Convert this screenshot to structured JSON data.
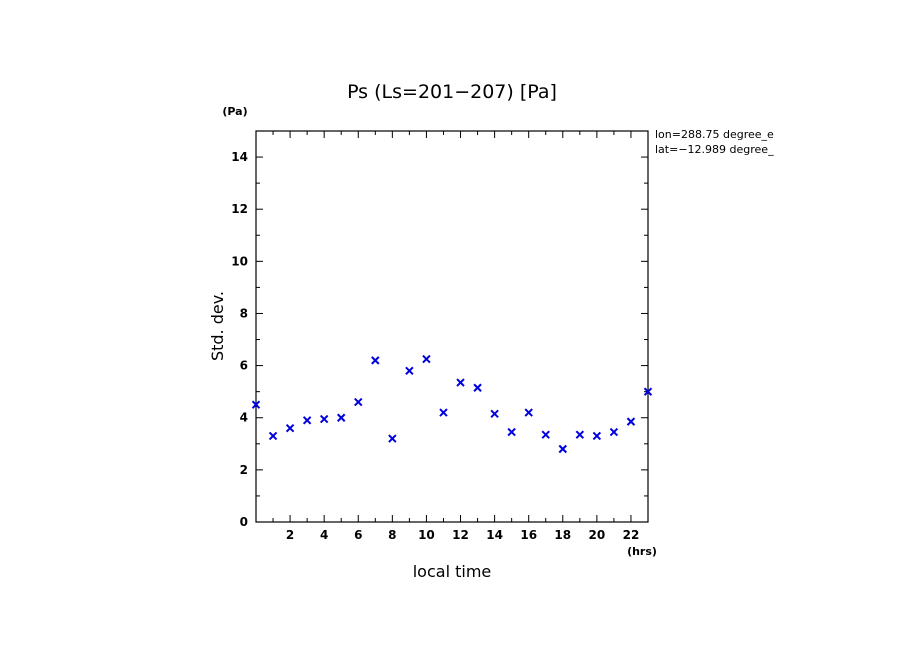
{
  "chart_data": {
    "type": "scatter",
    "title": "Ps (Ls=201−207) [Pa]",
    "xlabel": "local time",
    "ylabel": "Std. dev.",
    "x_unit": "(hrs)",
    "y_unit": "(Pa)",
    "xlim": [
      0,
      23
    ],
    "ylim": [
      0,
      15
    ],
    "x_ticks": [
      2,
      4,
      6,
      8,
      10,
      12,
      14,
      16,
      18,
      20,
      22
    ],
    "x_tick_labels": [
      "2",
      "4",
      "6",
      "8",
      "10",
      "12",
      "14",
      "16",
      "18",
      "20",
      "22"
    ],
    "y_ticks": [
      0,
      2,
      4,
      6,
      8,
      10,
      12,
      14
    ],
    "y_tick_labels": [
      "0",
      "2",
      "4",
      "6",
      "8",
      "10",
      "12",
      "14"
    ],
    "marker": "x",
    "color": "#0000dd",
    "annotations": [
      "lon=288.75 degree_e",
      "lat=−12.989 degree_"
    ],
    "series": [
      {
        "name": "Ps std. dev.",
        "x": [
          0,
          1,
          2,
          3,
          4,
          5,
          6,
          7,
          8,
          9,
          10,
          11,
          12,
          13,
          14,
          15,
          16,
          17,
          18,
          19,
          20,
          21,
          22,
          23
        ],
        "y": [
          4.5,
          3.3,
          3.6,
          3.9,
          3.95,
          4.0,
          4.6,
          6.2,
          3.2,
          5.8,
          6.25,
          4.2,
          5.35,
          5.15,
          4.15,
          3.45,
          4.2,
          3.35,
          2.8,
          3.35,
          3.3,
          3.45,
          3.85,
          5.0
        ]
      }
    ]
  }
}
